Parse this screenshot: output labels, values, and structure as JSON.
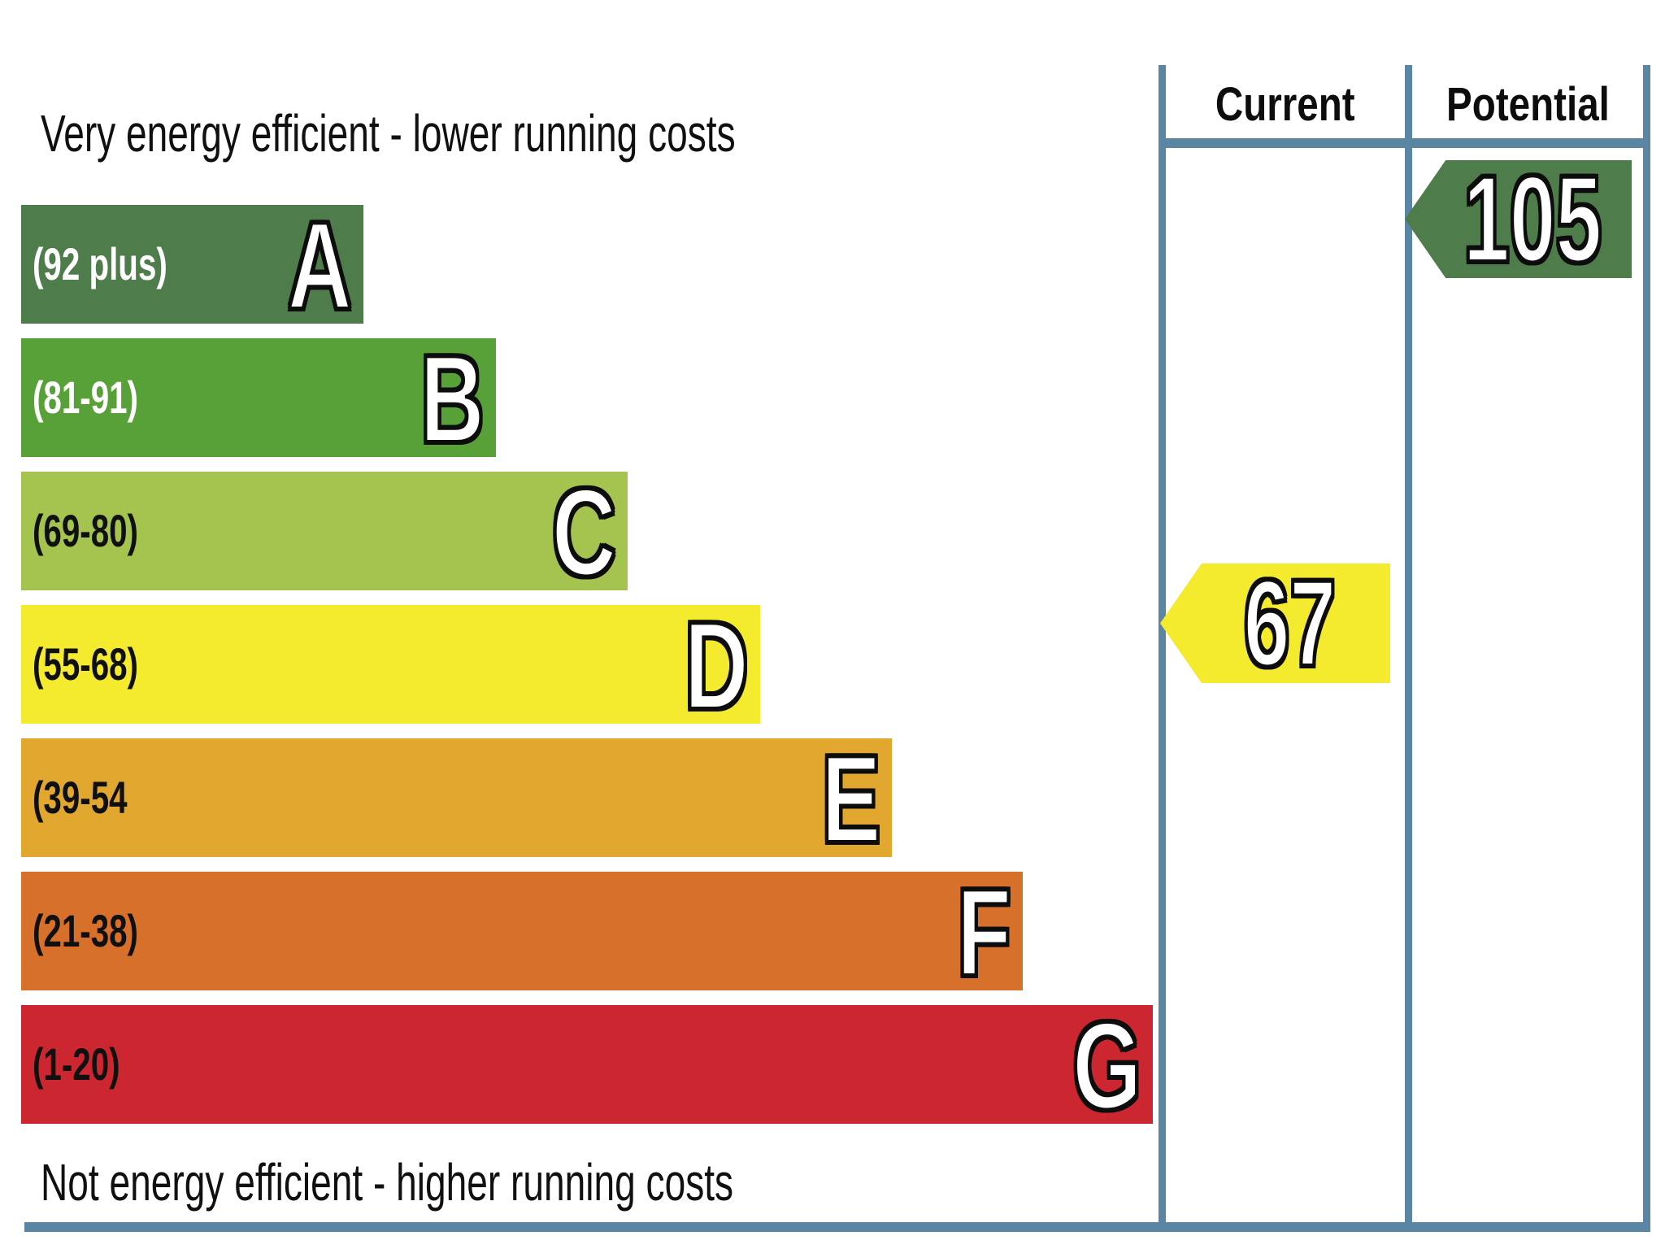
{
  "chart_data": {
    "type": "bar",
    "title_top": "Very energy efficient - lower running costs",
    "title_bottom": "Not energy efficient - higher running costs",
    "columns": [
      "Current",
      "Potential"
    ],
    "bands": [
      {
        "letter": "A",
        "range_label": "(92 plus)",
        "range_min": 92,
        "range_max": null,
        "color": "#4e7d4b",
        "label_color": "#ffffff"
      },
      {
        "letter": "B",
        "range_label": "(81-91)",
        "range_min": 81,
        "range_max": 91,
        "color": "#58a139",
        "label_color": "#ffffff"
      },
      {
        "letter": "C",
        "range_label": "(69-80)",
        "range_min": 69,
        "range_max": 80,
        "color": "#a5c44f",
        "label_color": "#101010"
      },
      {
        "letter": "D",
        "range_label": "(55-68)",
        "range_min": 55,
        "range_max": 68,
        "color": "#f4eb2f",
        "label_color": "#101010"
      },
      {
        "letter": "E",
        "range_label": "(39-54",
        "range_min": 39,
        "range_max": 54,
        "color": "#e1a72f",
        "label_color": "#101010"
      },
      {
        "letter": "F",
        "range_label": "(21-38)",
        "range_min": 21,
        "range_max": 38,
        "color": "#d7702b",
        "label_color": "#101010"
      },
      {
        "letter": "G",
        "range_label": "(1-20)",
        "range_min": 1,
        "range_max": 20,
        "color": "#cc2630",
        "label_color": "#101010"
      }
    ],
    "markers": {
      "current": {
        "value": "67",
        "band": "D",
        "color": "#f4eb2f"
      },
      "potential": {
        "value": "105",
        "band": "A",
        "color": "#4e7d4b"
      }
    },
    "border_color": "#5a85a3",
    "legend_position": "right",
    "grid": false
  }
}
